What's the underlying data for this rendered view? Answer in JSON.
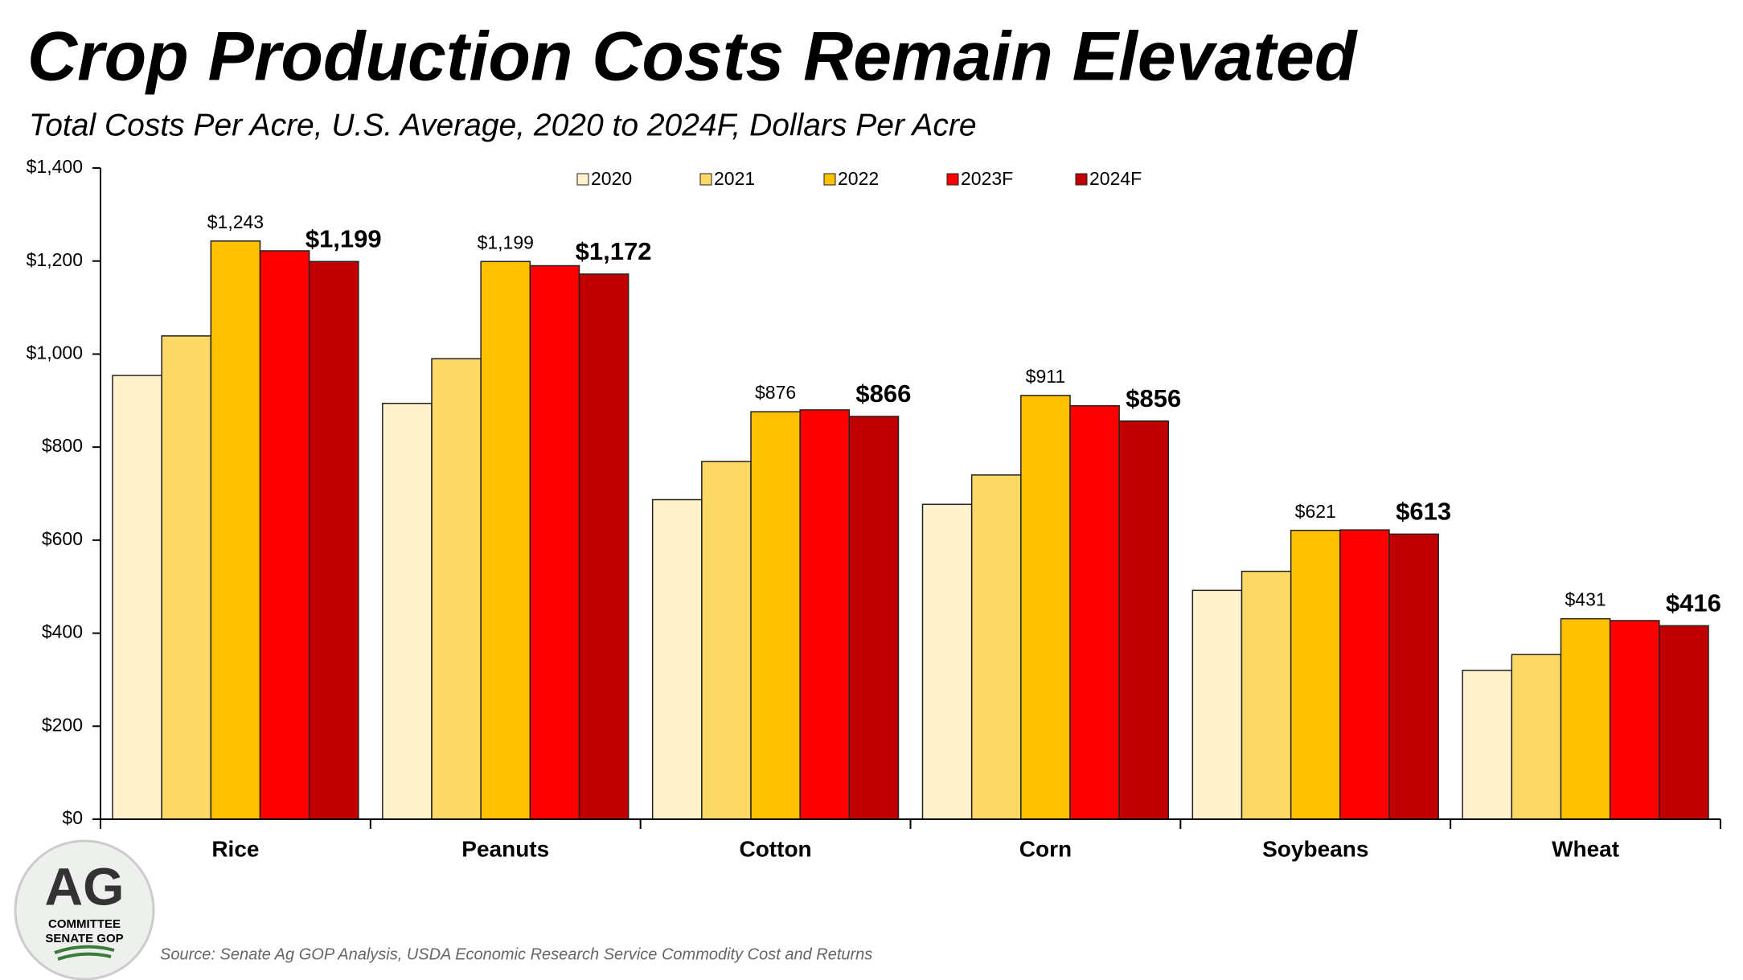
{
  "chart_data": {
    "type": "bar",
    "title": "Crop Production Costs Remain Elevated",
    "subtitle": "Total Costs Per Acre, U.S. Average, 2020 to 2024F, Dollars Per Acre",
    "source": "Source: Senate Ag GOP Analysis, USDA Economic Research Service Commodity Cost and Returns",
    "categories": [
      "Rice",
      "Peanuts",
      "Cotton",
      "Corn",
      "Soybeans",
      "Wheat"
    ],
    "series": [
      {
        "name": "2020",
        "color": "#fff2cc",
        "values": [
          954,
          894,
          687,
          677,
          492,
          320
        ]
      },
      {
        "name": "2021",
        "color": "#ffd966",
        "values": [
          1039,
          990,
          769,
          740,
          533,
          354
        ]
      },
      {
        "name": "2022",
        "color": "#ffc000",
        "values": [
          1243,
          1199,
          876,
          911,
          621,
          431
        ],
        "value_labels": [
          "$1,243",
          "$1,199",
          "$876",
          "$911",
          "$621",
          "$431"
        ]
      },
      {
        "name": "2023F",
        "color": "#ff0000",
        "values": [
          1222,
          1190,
          880,
          889,
          622,
          427
        ]
      },
      {
        "name": "2024F",
        "color": "#c00000",
        "values": [
          1199,
          1172,
          866,
          856,
          613,
          416
        ],
        "value_labels": [
          "$1,199",
          "$1,172",
          "$866",
          "$856",
          "$613",
          "$416"
        ]
      }
    ],
    "ylim": [
      0,
      1400
    ],
    "yticks": [
      {
        "value": 0,
        "label": "$0"
      },
      {
        "value": 200,
        "label": "$200"
      },
      {
        "value": 400,
        "label": "$400"
      },
      {
        "value": 600,
        "label": "$600"
      },
      {
        "value": 800,
        "label": "$800"
      },
      {
        "value": 1000,
        "label": "$1,000"
      },
      {
        "value": 1200,
        "label": "$1,200"
      },
      {
        "value": 1400,
        "label": "$1,400"
      }
    ],
    "grid": false,
    "legend": "top"
  },
  "logo": {
    "lines": [
      "AG",
      "COMMITTEE",
      "SENATE GOP"
    ]
  }
}
